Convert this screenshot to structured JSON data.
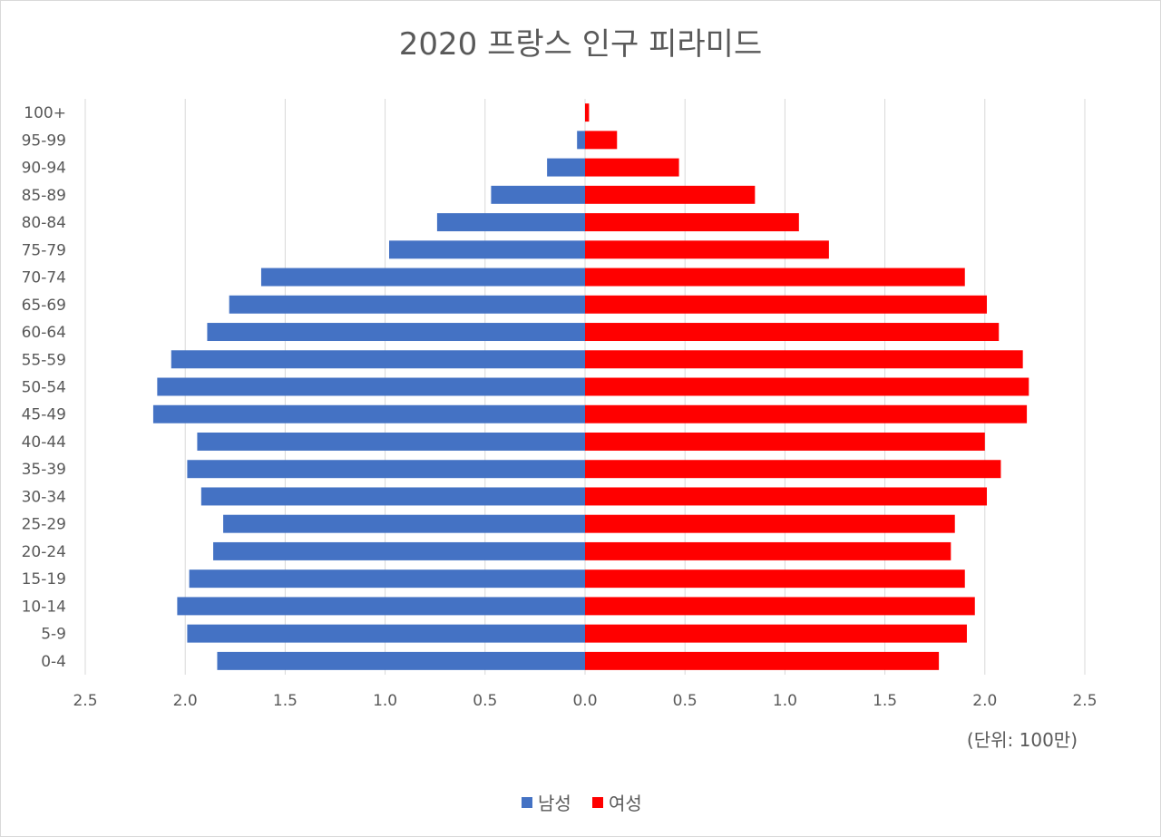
{
  "chart_data": {
    "type": "bar",
    "orientation": "horizontal",
    "layout": "population-pyramid",
    "title": "2020 프랑스 인구 피라미드",
    "unit_note": "(단위: 100만)",
    "categories": [
      "0-4",
      "5-9",
      "10-14",
      "15-19",
      "20-24",
      "25-29",
      "30-34",
      "35-39",
      "40-44",
      "45-49",
      "50-54",
      "55-59",
      "60-64",
      "65-69",
      "70-74",
      "75-79",
      "80-84",
      "85-89",
      "90-94",
      "95-99",
      "100+"
    ],
    "series": [
      {
        "name": "남성",
        "side": "left",
        "color": "#4472C4",
        "values": [
          1.84,
          1.99,
          2.04,
          1.98,
          1.86,
          1.81,
          1.92,
          1.99,
          1.94,
          2.16,
          2.14,
          2.07,
          1.89,
          1.78,
          1.62,
          0.98,
          0.74,
          0.47,
          0.19,
          0.04,
          0.0
        ]
      },
      {
        "name": "여성",
        "side": "right",
        "color": "#FF0000",
        "values": [
          1.77,
          1.91,
          1.95,
          1.9,
          1.83,
          1.85,
          2.01,
          2.08,
          2.0,
          2.21,
          2.22,
          2.19,
          2.07,
          2.01,
          1.9,
          1.22,
          1.07,
          0.85,
          0.47,
          0.16,
          0.02
        ]
      }
    ],
    "x_ticks": [
      "2.5",
      "2.0",
      "1.5",
      "1.0",
      "0.5",
      "0.0",
      "0.5",
      "1.0",
      "1.5",
      "2.0",
      "2.5"
    ],
    "xlim": [
      -2.5,
      2.5
    ],
    "grid": "vertical",
    "legend": "bottom"
  }
}
